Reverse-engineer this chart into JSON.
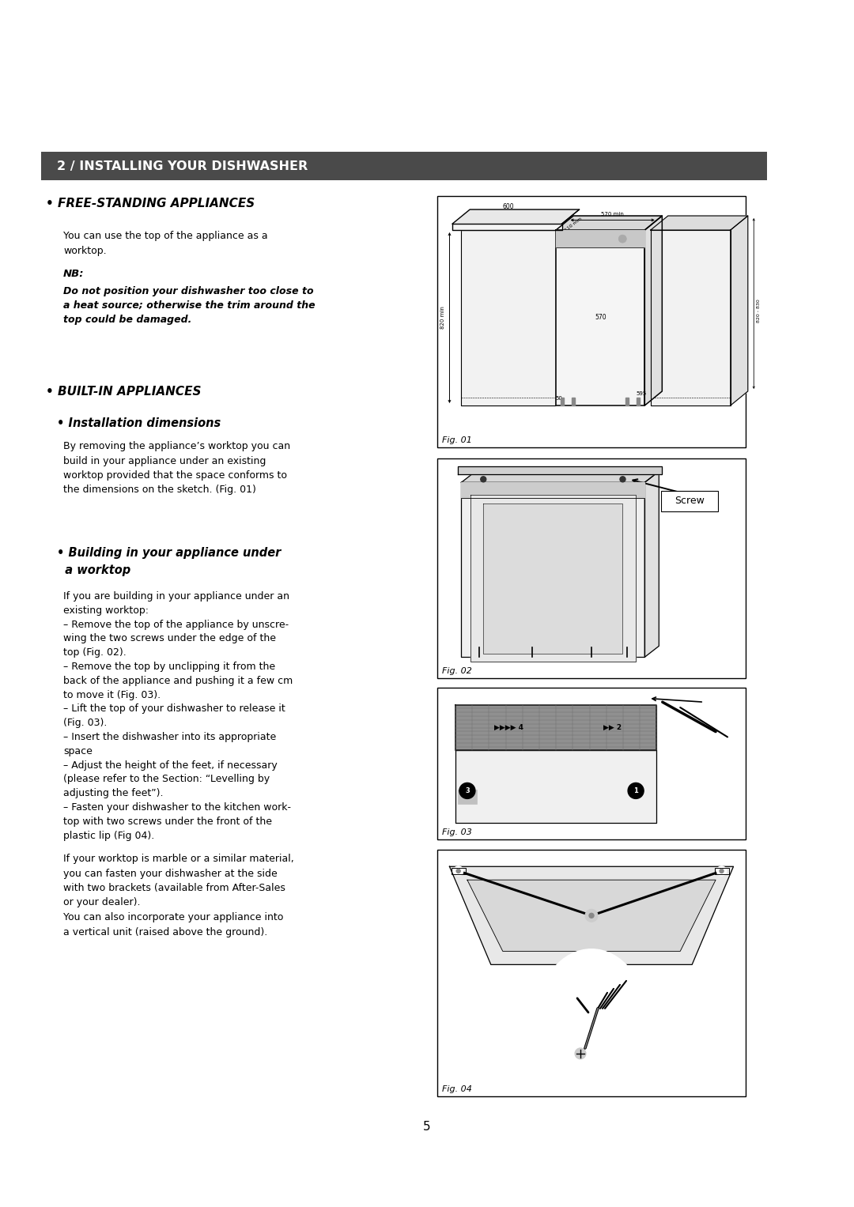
{
  "background_color": "#ffffff",
  "header_bar_color": "#4a4a4a",
  "header_text": "2 / INSTALLING YOUR DISHWASHER",
  "header_text_color": "#ffffff",
  "header_fontsize": 11.5,
  "section1_title": "• FREE-STANDING APPLIANCES",
  "section1_title_fontsize": 11,
  "section1_body1": "You can use the top of the appliance as a\nworktop.",
  "section1_nb_title": "NB:",
  "section1_nb_body": "Do not position your dishwasher too close to\na heat source; otherwise the trim around the\ntop could be damaged.",
  "section2_title": "• BUILT-IN APPLIANCES",
  "section2_title_fontsize": 11,
  "section2a_title": "• Installation dimensions",
  "section2a_title_fontsize": 10.5,
  "section2a_body": "By removing the appliance’s worktop you can\nbuild in your appliance under an existing\nworktop provided that the space conforms to\nthe dimensions on the sketch. (Fig. 01)",
  "section2b_title1": "• Building in your appliance under",
  "section2b_title2": "  a worktop",
  "section2b_title_fontsize": 10.5,
  "section2b_body": "If you are building in your appliance under an\nexisting worktop:\n– Remove the top of the appliance by unscre-\nwing the two screws under the edge of the\ntop (Fig. 02).\n– Remove the top by unclipping it from the\nback of the appliance and pushing it a few cm\nto move it (Fig. 03).\n– Lift the top of your dishwasher to release it\n(Fig. 03).\n– Insert the dishwasher into its appropriate\nspace\n– Adjust the height of the feet, if necessary\n(please refer to the Section: “Levelling by\nadjusting the feet”).\n– Fasten your dishwasher to the kitchen work-\ntop with two screws under the front of the\nplastic lip (Fig 04).",
  "section2b_body2": "If your worktop is marble or a similar material,\nyou can fasten your dishwasher at the side\nwith two brackets (available from After-Sales\nor your dealer).\nYou can also incorporate your appliance into\na vertical unit (raised above the ground).",
  "page_number": "5",
  "body_fontsize": 9.0,
  "fig01_label": "Fig. 01",
  "fig02_label": "Fig. 02",
  "fig03_label": "Fig. 03",
  "fig04_label": "Fig. 04",
  "screw_label": "Screw"
}
